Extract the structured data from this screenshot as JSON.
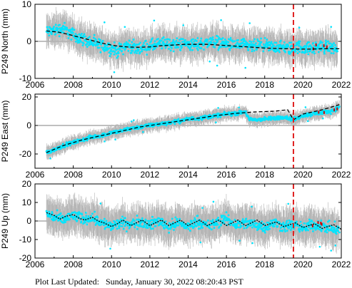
{
  "footer": {
    "label": "Plot Last Updated:",
    "value": "Sunday, January 30, 2022 08:20:43 PST"
  },
  "colors": {
    "data": "#00e5ff",
    "error_bars": "#b4b4b4",
    "model": "#000000",
    "event_line": "#e02020",
    "outlier": "#cc0000"
  },
  "chart_data": [
    {
      "type": "scatter",
      "ylabel": "P249 North (mm)",
      "xlim": [
        2006,
        2022
      ],
      "ylim": [
        -10,
        10
      ],
      "xticks": [
        2006,
        2008,
        2010,
        2012,
        2014,
        2016,
        2018,
        2020,
        2022
      ],
      "yticks": [
        -10,
        0,
        10
      ],
      "event_line_x": 2019.5,
      "series": [
        {
          "values": [
            [
              2006.6,
              2.5
            ],
            [
              2007.0,
              3.0
            ],
            [
              2007.5,
              3.5
            ],
            [
              2007.9,
              2.0
            ],
            [
              2008.3,
              1.0
            ],
            [
              2008.8,
              0.0
            ],
            [
              2009.3,
              -1.0
            ],
            [
              2009.8,
              -1.5
            ],
            [
              2010.3,
              -2.5
            ],
            [
              2010.8,
              -1.0
            ],
            [
              2011.3,
              -2.0
            ],
            [
              2011.8,
              -1.5
            ],
            [
              2012.3,
              -1.0
            ],
            [
              2012.8,
              -0.5
            ],
            [
              2013.3,
              -1.0
            ],
            [
              2013.8,
              -0.5
            ],
            [
              2014.3,
              -1.0
            ],
            [
              2014.8,
              -0.5
            ],
            [
              2015.3,
              0.0
            ],
            [
              2015.8,
              -0.5
            ],
            [
              2016.3,
              -1.0
            ],
            [
              2016.8,
              -1.0
            ],
            [
              2017.3,
              -1.5
            ],
            [
              2017.8,
              -1.0
            ],
            [
              2018.3,
              -1.5
            ],
            [
              2018.8,
              -1.5
            ],
            [
              2019.3,
              -2.0
            ],
            [
              2019.8,
              -1.5
            ],
            [
              2020.3,
              -2.0
            ],
            [
              2020.8,
              -1.5
            ],
            [
              2021.3,
              -1.5
            ],
            [
              2021.8,
              -2.0
            ]
          ]
        },
        {
          "values": [
            [
              2006.6,
              2.8
            ],
            [
              2007.2,
              2.5
            ],
            [
              2007.8,
              1.8
            ],
            [
              2008.4,
              1.0
            ],
            [
              2009.0,
              0.2
            ],
            [
              2009.6,
              -0.6
            ],
            [
              2010.2,
              -1.2
            ],
            [
              2010.8,
              -1.5
            ],
            [
              2011.4,
              -1.6
            ],
            [
              2012.0,
              -1.5
            ],
            [
              2012.6,
              -1.2
            ],
            [
              2013.2,
              -1.0
            ],
            [
              2013.8,
              -0.8
            ],
            [
              2014.4,
              -0.8
            ],
            [
              2015.0,
              -0.8
            ],
            [
              2015.6,
              -1.0
            ],
            [
              2016.2,
              -1.2
            ],
            [
              2016.8,
              -1.4
            ],
            [
              2017.4,
              -1.6
            ],
            [
              2018.0,
              -1.8
            ],
            [
              2018.6,
              -1.9
            ],
            [
              2019.2,
              -2.0
            ],
            [
              2019.8,
              -2.1
            ],
            [
              2020.4,
              -2.1
            ],
            [
              2021.0,
              -2.0
            ],
            [
              2021.6,
              -2.0
            ],
            [
              2022.0,
              -2.0
            ]
          ]
        }
      ]
    },
    {
      "type": "scatter",
      "ylabel": "P249 East (mm)",
      "xlim": [
        2006,
        2022
      ],
      "ylim": [
        -30,
        22
      ],
      "xticks": [
        2006,
        2008,
        2010,
        2012,
        2014,
        2016,
        2018,
        2020,
        2022
      ],
      "yticks": [
        -20,
        0,
        20
      ],
      "event_line_x": 2019.5,
      "series": [
        {
          "values": [
            [
              2006.6,
              -19.0
            ],
            [
              2007.0,
              -17.0
            ],
            [
              2007.5,
              -14.0
            ],
            [
              2008.0,
              -12.0
            ],
            [
              2008.5,
              -10.0
            ],
            [
              2009.0,
              -8.0
            ],
            [
              2009.5,
              -7.0
            ],
            [
              2010.0,
              -5.0
            ],
            [
              2010.5,
              -4.0
            ],
            [
              2011.0,
              -2.0
            ],
            [
              2011.5,
              -1.0
            ],
            [
              2012.0,
              0.0
            ],
            [
              2012.5,
              1.0
            ],
            [
              2013.0,
              2.0
            ],
            [
              2013.5,
              3.0
            ],
            [
              2014.0,
              4.5
            ],
            [
              2014.5,
              5.0
            ],
            [
              2015.0,
              6.0
            ],
            [
              2015.5,
              7.0
            ],
            [
              2016.0,
              8.0
            ],
            [
              2016.5,
              8.5
            ],
            [
              2017.0,
              9.5
            ],
            [
              2017.2,
              4.0
            ],
            [
              2017.6,
              4.0
            ],
            [
              2018.0,
              4.5
            ],
            [
              2018.5,
              5.0
            ],
            [
              2019.0,
              6.0
            ],
            [
              2019.5,
              4.0
            ],
            [
              2020.0,
              7.0
            ],
            [
              2020.5,
              8.0
            ],
            [
              2021.0,
              9.0
            ],
            [
              2021.5,
              10.0
            ],
            [
              2021.9,
              13.0
            ]
          ]
        },
        {
          "values": [
            [
              2006.6,
              -19.0
            ],
            [
              2007.5,
              -14.0
            ],
            [
              2008.5,
              -10.0
            ],
            [
              2009.5,
              -7.0
            ],
            [
              2010.5,
              -4.0
            ],
            [
              2011.5,
              -1.0
            ],
            [
              2012.5,
              1.0
            ],
            [
              2013.5,
              3.0
            ],
            [
              2014.5,
              5.0
            ],
            [
              2015.5,
              7.0
            ],
            [
              2016.5,
              8.5
            ],
            [
              2017.5,
              9.5
            ],
            [
              2018.5,
              10.0
            ],
            [
              2019.2,
              11.0
            ],
            [
              2019.5,
              4.0
            ],
            [
              2020.0,
              8.0
            ],
            [
              2021.0,
              11.0
            ],
            [
              2022.0,
              15.0
            ]
          ]
        }
      ]
    },
    {
      "type": "scatter",
      "ylabel": "P249 Up (mm)",
      "xlim": [
        2006,
        2022
      ],
      "ylim": [
        -20,
        20
      ],
      "xticks": [
        2006,
        2008,
        2010,
        2012,
        2014,
        2016,
        2018,
        2020,
        2022
      ],
      "yticks": [
        -20,
        -10,
        0,
        10,
        20
      ],
      "event_line_x": 2019.5,
      "series": [
        {
          "values": [
            [
              2006.6,
              4.0
            ],
            [
              2007.0,
              2.0
            ],
            [
              2007.5,
              0.5
            ],
            [
              2008.0,
              3.0
            ],
            [
              2008.5,
              1.0
            ],
            [
              2009.0,
              2.0
            ],
            [
              2009.5,
              -1.0
            ],
            [
              2010.0,
              -3.0
            ],
            [
              2010.5,
              -1.0
            ],
            [
              2011.0,
              -2.0
            ],
            [
              2011.5,
              0.0
            ],
            [
              2012.0,
              -2.0
            ],
            [
              2012.5,
              0.0
            ],
            [
              2013.0,
              -3.0
            ],
            [
              2013.5,
              -1.0
            ],
            [
              2014.0,
              -3.0
            ],
            [
              2014.5,
              0.0
            ],
            [
              2015.0,
              -3.0
            ],
            [
              2015.5,
              -1.0
            ],
            [
              2016.0,
              1.0
            ],
            [
              2016.5,
              -2.0
            ],
            [
              2017.0,
              -1.0
            ],
            [
              2017.5,
              -2.0
            ],
            [
              2018.0,
              -3.0
            ],
            [
              2018.5,
              -1.0
            ],
            [
              2019.0,
              -3.0
            ],
            [
              2019.5,
              -2.0
            ],
            [
              2020.0,
              -4.0
            ],
            [
              2020.5,
              -2.0
            ],
            [
              2021.0,
              -3.0
            ],
            [
              2021.5,
              -4.0
            ],
            [
              2021.9,
              -5.0
            ]
          ]
        },
        {
          "values": [
            [
              2006.6,
              4.5
            ],
            [
              2007.0,
              3.0
            ],
            [
              2007.3,
              1.0
            ],
            [
              2007.6,
              2.5
            ],
            [
              2008.0,
              3.5
            ],
            [
              2008.3,
              1.5
            ],
            [
              2008.6,
              0.5
            ],
            [
              2009.0,
              2.0
            ],
            [
              2009.3,
              0.0
            ],
            [
              2009.6,
              -1.0
            ],
            [
              2010.0,
              -3.0
            ],
            [
              2010.3,
              -1.5
            ],
            [
              2010.6,
              0.5
            ],
            [
              2011.0,
              -2.5
            ],
            [
              2011.3,
              -1.0
            ],
            [
              2011.6,
              0.5
            ],
            [
              2012.0,
              -2.5
            ],
            [
              2012.3,
              -1.0
            ],
            [
              2012.6,
              0.5
            ],
            [
              2013.0,
              -2.5
            ],
            [
              2013.3,
              -1.0
            ],
            [
              2013.6,
              0.5
            ],
            [
              2014.0,
              -2.5
            ],
            [
              2014.3,
              -1.0
            ],
            [
              2014.6,
              0.5
            ],
            [
              2015.0,
              -2.5
            ],
            [
              2015.3,
              -1.0
            ],
            [
              2015.6,
              0.5
            ],
            [
              2016.0,
              -2.5
            ],
            [
              2016.3,
              -1.0
            ],
            [
              2016.6,
              0.5
            ],
            [
              2017.0,
              -2.5
            ],
            [
              2017.3,
              -1.0
            ],
            [
              2017.6,
              0.5
            ],
            [
              2018.0,
              -2.5
            ],
            [
              2018.3,
              -1.5
            ],
            [
              2018.6,
              -0.5
            ],
            [
              2019.0,
              -3.0
            ],
            [
              2019.3,
              -2.0
            ],
            [
              2019.6,
              -1.0
            ],
            [
              2020.0,
              -3.5
            ],
            [
              2020.3,
              -2.5
            ],
            [
              2020.6,
              -1.5
            ],
            [
              2021.0,
              -4.0
            ],
            [
              2021.3,
              -3.0
            ],
            [
              2021.6,
              -2.0
            ],
            [
              2022.0,
              -4.5
            ]
          ]
        }
      ]
    }
  ]
}
